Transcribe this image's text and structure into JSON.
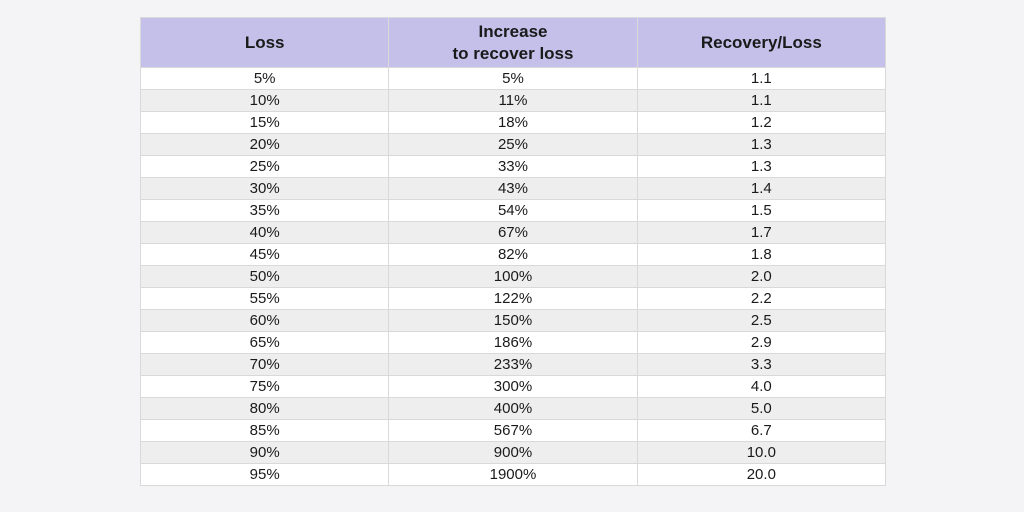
{
  "chart_data": {
    "type": "table",
    "headers": [
      "Loss",
      "Increase\nto recover loss",
      "Recovery/Loss"
    ],
    "rows": [
      [
        "5%",
        "5%",
        "1.1"
      ],
      [
        "10%",
        "11%",
        "1.1"
      ],
      [
        "15%",
        "18%",
        "1.2"
      ],
      [
        "20%",
        "25%",
        "1.3"
      ],
      [
        "25%",
        "33%",
        "1.3"
      ],
      [
        "30%",
        "43%",
        "1.4"
      ],
      [
        "35%",
        "54%",
        "1.5"
      ],
      [
        "40%",
        "67%",
        "1.7"
      ],
      [
        "45%",
        "82%",
        "1.8"
      ],
      [
        "50%",
        "100%",
        "2.0"
      ],
      [
        "55%",
        "122%",
        "2.2"
      ],
      [
        "60%",
        "150%",
        "2.5"
      ],
      [
        "65%",
        "186%",
        "2.9"
      ],
      [
        "70%",
        "233%",
        "3.3"
      ],
      [
        "75%",
        "300%",
        "4.0"
      ],
      [
        "80%",
        "400%",
        "5.0"
      ],
      [
        "85%",
        "567%",
        "6.7"
      ],
      [
        "90%",
        "900%",
        "10.0"
      ],
      [
        "95%",
        "1900%",
        "20.0"
      ]
    ],
    "numeric": {
      "loss_pct": [
        5,
        10,
        15,
        20,
        25,
        30,
        35,
        40,
        45,
        50,
        55,
        60,
        65,
        70,
        75,
        80,
        85,
        90,
        95
      ],
      "increase_to_recover_pct": [
        5,
        11,
        18,
        25,
        33,
        43,
        54,
        67,
        82,
        100,
        122,
        150,
        186,
        233,
        300,
        400,
        567,
        900,
        1900
      ],
      "recovery_over_loss": [
        1.1,
        1.1,
        1.2,
        1.3,
        1.3,
        1.4,
        1.5,
        1.7,
        1.8,
        2.0,
        2.2,
        2.5,
        2.9,
        3.3,
        4.0,
        5.0,
        6.7,
        10.0,
        20.0
      ]
    },
    "colors": {
      "header_bg": "#c5c0ea",
      "row_bg": "#ffffff",
      "row_alt_bg": "#eeeeef",
      "border": "#d9d9d9",
      "page_bg": "#f4f4f6",
      "text": "#1a1a1a"
    }
  }
}
